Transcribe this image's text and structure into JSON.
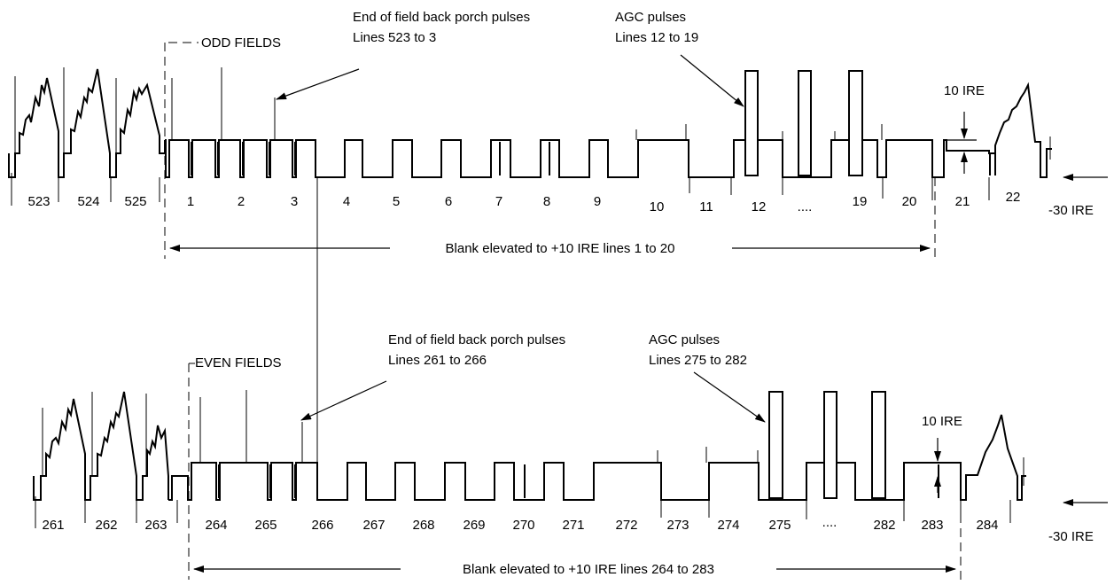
{
  "odd": {
    "field_label": "ODD FIELDS",
    "backporch_title": "End of field back porch pulses",
    "backporch_lines": "Lines 523 to 3",
    "agc_title": "AGC pulses",
    "agc_lines": "Lines 12 to 19",
    "ire_label": "10 IRE",
    "neg_label": "-30 IRE",
    "blank_label": "Blank elevated to +10 IRE lines 1 to 20",
    "line_numbers": [
      "523",
      "524",
      "525",
      "1",
      "2",
      "3",
      "4",
      "5",
      "6",
      "7",
      "8",
      "9",
      "10",
      "11",
      "12",
      "....",
      "19",
      "20",
      "21",
      "22"
    ]
  },
  "even": {
    "field_label": "EVEN FIELDS",
    "backporch_title": "End of field back porch pulses",
    "backporch_lines": "Lines 261 to 266",
    "agc_title": "AGC pulses",
    "agc_lines": "Lines 275 to 282",
    "ire_label": "10 IRE",
    "neg_label": "-30 IRE",
    "blank_label": "Blank elevated to +10 IRE lines 264 to 283",
    "line_numbers": [
      "261",
      "262",
      "263",
      "264",
      "265",
      "266",
      "267",
      "268",
      "269",
      "270",
      "271",
      "272",
      "273",
      "274",
      "275",
      "....",
      "282",
      "283",
      "284"
    ]
  }
}
